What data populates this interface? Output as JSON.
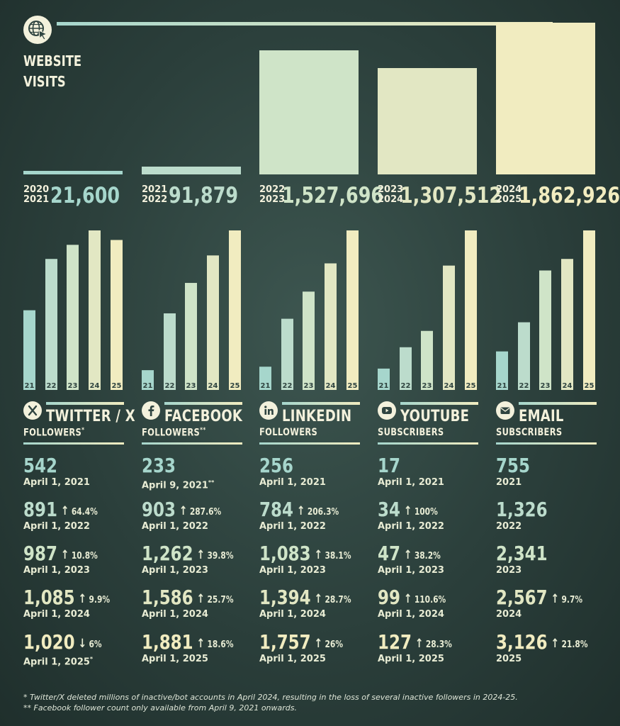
{
  "colors": {
    "background": "#2f4440",
    "y2021": "#a6d6cc",
    "y2022": "#bcdccc",
    "y2023": "#cfe4c8",
    "y2024": "#e2e7c3",
    "y2025": "#f1ecc0",
    "text": "#f3f1dc"
  },
  "chart_data": [
    {
      "type": "bar",
      "title": "WEBSITE VISITS",
      "title_lines": [
        "WEBSITE",
        "VISITS"
      ],
      "icon": "globe-cursor-icon",
      "categories": [
        "2020 2021",
        "2021 2022",
        "2022 2023",
        "2023 2024",
        "2024 2025"
      ],
      "period_labels": [
        [
          "2020",
          "2021"
        ],
        [
          "2021",
          "2022"
        ],
        [
          "2022",
          "2023"
        ],
        [
          "2023",
          "2024"
        ],
        [
          "2024",
          "2025"
        ]
      ],
      "values": [
        21600,
        91879,
        1527696,
        1307512,
        1862926
      ],
      "value_labels": [
        "21,600",
        "91,879",
        "1,527,696",
        "1,307,512",
        "1,862,926"
      ]
    },
    {
      "type": "bar",
      "title": "TWITTER / X",
      "subtitle": "FOLLOWERS",
      "subtitle_mark": "*",
      "icon": "x-logo-icon",
      "categories": [
        "21",
        "22",
        "23",
        "24",
        "25"
      ],
      "values": [
        542,
        891,
        987,
        1085,
        1020
      ],
      "rows": [
        {
          "value": "542",
          "change": "",
          "direction": "",
          "date": "April 1, 2021",
          "date_mark": ""
        },
        {
          "value": "891",
          "change": "64.4%",
          "direction": "up",
          "date": "April 1, 2022",
          "date_mark": ""
        },
        {
          "value": "987",
          "change": "10.8%",
          "direction": "up",
          "date": "April 1, 2023",
          "date_mark": ""
        },
        {
          "value": "1,085",
          "change": "9.9%",
          "direction": "up",
          "date": "April 1, 2024",
          "date_mark": ""
        },
        {
          "value": "1,020",
          "change": "6%",
          "direction": "down",
          "date": "April 1, 2025",
          "date_mark": "*"
        }
      ]
    },
    {
      "type": "bar",
      "title": "FACEBOOK",
      "subtitle": "FOLLOWERS",
      "subtitle_mark": "**",
      "icon": "facebook-logo-icon",
      "categories": [
        "21",
        "22",
        "23",
        "24",
        "25"
      ],
      "values": [
        233,
        903,
        1262,
        1586,
        1881
      ],
      "rows": [
        {
          "value": "233",
          "change": "",
          "direction": "",
          "date": "April 9, 2021",
          "date_mark": "**"
        },
        {
          "value": "903",
          "change": "287.6%",
          "direction": "up",
          "date": "April 1, 2022",
          "date_mark": ""
        },
        {
          "value": "1,262",
          "change": "39.8%",
          "direction": "up",
          "date": "April 1, 2023",
          "date_mark": ""
        },
        {
          "value": "1,586",
          "change": "25.7%",
          "direction": "up",
          "date": "April 1, 2024",
          "date_mark": ""
        },
        {
          "value": "1,881",
          "change": "18.6%",
          "direction": "up",
          "date": "April 1, 2025",
          "date_mark": ""
        }
      ]
    },
    {
      "type": "bar",
      "title": "LINKEDIN",
      "subtitle": "FOLLOWERS",
      "subtitle_mark": "",
      "icon": "linkedin-logo-icon",
      "categories": [
        "21",
        "22",
        "23",
        "24",
        "25"
      ],
      "values": [
        256,
        784,
        1083,
        1394,
        1757
      ],
      "rows": [
        {
          "value": "256",
          "change": "",
          "direction": "",
          "date": "April 1, 2021",
          "date_mark": ""
        },
        {
          "value": "784",
          "change": "206.3%",
          "direction": "up",
          "date": "April 1, 2022",
          "date_mark": ""
        },
        {
          "value": "1,083",
          "change": "38.1%",
          "direction": "up",
          "date": "April 1, 2023",
          "date_mark": ""
        },
        {
          "value": "1,394",
          "change": "28.7%",
          "direction": "up",
          "date": "April 1, 2024",
          "date_mark": ""
        },
        {
          "value": "1,757",
          "change": "26%",
          "direction": "up",
          "date": "April 1, 2025",
          "date_mark": ""
        }
      ]
    },
    {
      "type": "bar",
      "title": "YOUTUBE",
      "subtitle": "SUBSCRIBERS",
      "subtitle_mark": "",
      "icon": "youtube-logo-icon",
      "categories": [
        "21",
        "22",
        "23",
        "24",
        "25"
      ],
      "values": [
        17,
        34,
        47,
        99,
        127
      ],
      "rows": [
        {
          "value": "17",
          "change": "",
          "direction": "",
          "date": "April 1, 2021",
          "date_mark": ""
        },
        {
          "value": "34",
          "change": "100%",
          "direction": "up",
          "date": "April 1, 2022",
          "date_mark": ""
        },
        {
          "value": "47",
          "change": "38.2%",
          "direction": "up",
          "date": "April 1, 2023",
          "date_mark": ""
        },
        {
          "value": "99",
          "change": "110.6%",
          "direction": "up",
          "date": "April 1, 2024",
          "date_mark": ""
        },
        {
          "value": "127",
          "change": "28.3%",
          "direction": "up",
          "date": "April 1, 2025",
          "date_mark": ""
        }
      ]
    },
    {
      "type": "bar",
      "title": "EMAIL",
      "subtitle": "SUBSCRIBERS",
      "subtitle_mark": "",
      "icon": "email-envelope-icon",
      "categories": [
        "21",
        "22",
        "23",
        "24",
        "25"
      ],
      "values": [
        755,
        1326,
        2341,
        2567,
        3126
      ],
      "rows": [
        {
          "value": "755",
          "change": "",
          "direction": "",
          "date": "2021",
          "date_mark": ""
        },
        {
          "value": "1,326",
          "change": "",
          "direction": "",
          "date": "2022",
          "date_mark": ""
        },
        {
          "value": "2,341",
          "change": "",
          "direction": "",
          "date": "2023",
          "date_mark": ""
        },
        {
          "value": "2,567",
          "change": "9.7%",
          "direction": "up",
          "date": "2024",
          "date_mark": ""
        },
        {
          "value": "3,126",
          "change": "21.8%",
          "direction": "up",
          "date": "2025",
          "date_mark": ""
        }
      ]
    }
  ],
  "footnotes": [
    "* Twitter/X deleted millions of inactive/bot accounts in April 2024, resulting in the loss of several inactive followers in 2024-25.",
    "** Facebook follower count only available from April 9, 2021 onwards."
  ]
}
